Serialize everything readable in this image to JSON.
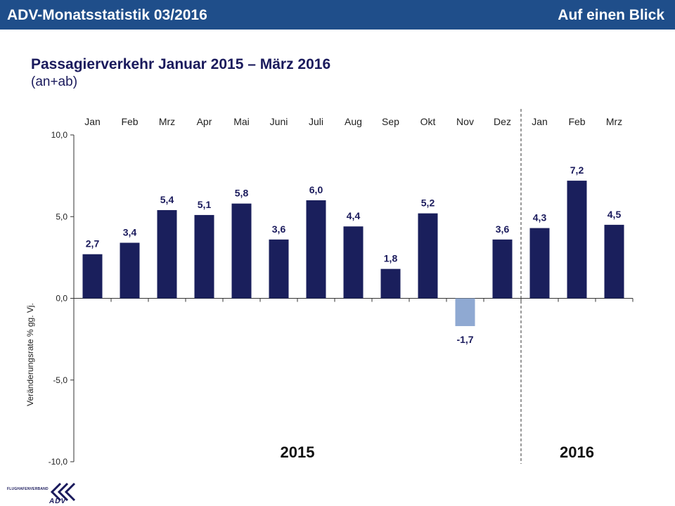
{
  "header": {
    "left_title": "ADV-Monatsstatistik 03/2016",
    "right_title": "Auf einen Blick"
  },
  "chart_heading": {
    "title": "Passagierverkehr  Januar 2015 – März 2016",
    "subtitle": "(an+ab)"
  },
  "logo": {
    "org_text": "FLUGHAFENVERBAND",
    "abbr": "ADV"
  },
  "colors": {
    "header_bg": "#1f4e8a",
    "bar_positive": "#1a1f5c",
    "bar_negative": "#8fa9d2",
    "text_dark": "#1a1a5c"
  },
  "chart_data": {
    "type": "bar",
    "categories": [
      "Jan",
      "Feb",
      "Mrz",
      "Apr",
      "Mai",
      "Juni",
      "Juli",
      "Aug",
      "Sep",
      "Okt",
      "Nov",
      "Dez",
      "Jan",
      "Feb",
      "Mrz"
    ],
    "values": [
      2.7,
      3.4,
      5.4,
      5.1,
      5.8,
      3.6,
      6.0,
      4.4,
      1.8,
      5.2,
      -1.7,
      3.6,
      4.3,
      7.2,
      4.5
    ],
    "value_labels": [
      "2,7",
      "3,4",
      "5,4",
      "5,1",
      "5,8",
      "3,6",
      "6,0",
      "4,4",
      "1,8",
      "5,2",
      "-1,7",
      "3,6",
      "4,3",
      "7,2",
      "4,5"
    ],
    "ylabel": "Veränderungsrate % gg. Vj.",
    "ylim": [
      -10,
      10
    ],
    "yticks": [
      10,
      5,
      0,
      -5,
      -10
    ],
    "ytick_labels": [
      "10,0",
      "5,0",
      "0,0",
      "-5,0",
      "-10,0"
    ],
    "year_groups": [
      {
        "label": "2015",
        "start_index": 0,
        "end_index": 11
      },
      {
        "label": "2016",
        "start_index": 12,
        "end_index": 14
      }
    ],
    "legend": "none",
    "grid": false
  }
}
